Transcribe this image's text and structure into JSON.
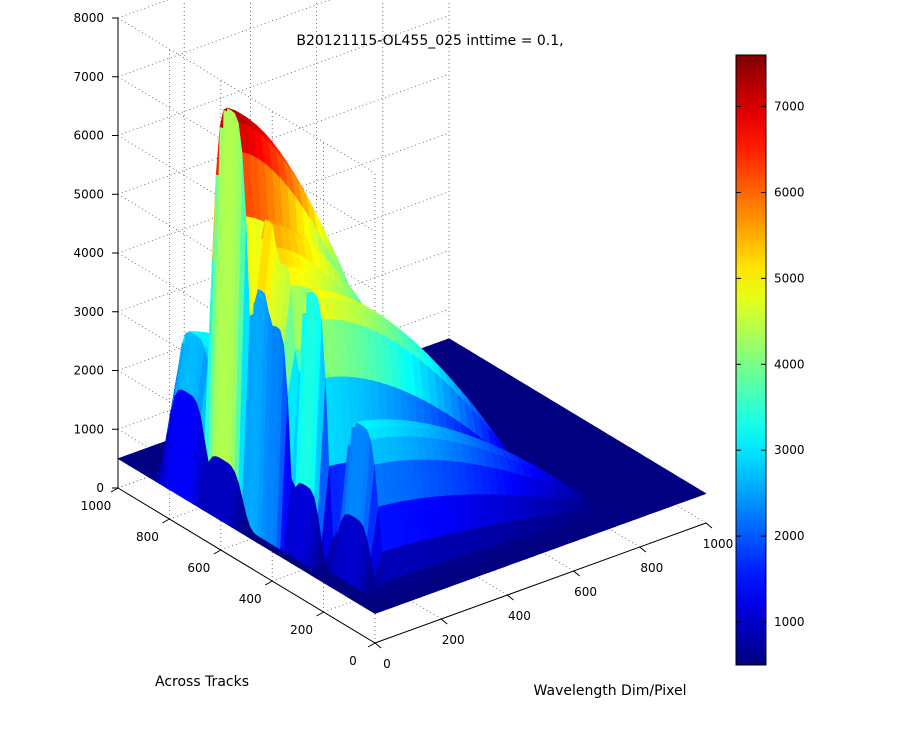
{
  "chart_data": {
    "type": "surface3d",
    "title": "B20121115-OL455_025 inttime = 0.1,",
    "xlabel": "Wavelength Dim/Pixel",
    "ylabel": "Across Tracks",
    "zlabel": "",
    "xlim": [
      0,
      1000
    ],
    "ylim": [
      0,
      1000
    ],
    "zlim": [
      0,
      8000
    ],
    "x_ticks": [
      "0",
      "200",
      "400",
      "600",
      "800",
      "1000"
    ],
    "y_ticks": [
      "0",
      "200",
      "400",
      "600",
      "800",
      "1000"
    ],
    "z_ticks": [
      "0",
      "1000",
      "2000",
      "3000",
      "4000",
      "5000",
      "6000",
      "7000",
      "8000"
    ],
    "colorbar": {
      "colormap": "jet",
      "range": [
        500,
        7600
      ],
      "ticks": [
        "1000",
        "2000",
        "3000",
        "4000",
        "5000",
        "6000",
        "7000"
      ]
    },
    "grid": true,
    "peak_value": 7400,
    "baseline_value": 500,
    "ridges": [
      {
        "x_start": 10,
        "x_end": 500,
        "y_center": 760,
        "y_width": 90,
        "peak": 3200
      },
      {
        "x_start": 20,
        "x_end": 560,
        "y_center": 620,
        "y_width": 90,
        "peak": 7400
      },
      {
        "x_start": 30,
        "x_end": 600,
        "y_center": 500,
        "y_width": 60,
        "peak": 5800
      },
      {
        "x_start": 30,
        "x_end": 640,
        "y_center": 440,
        "y_width": 60,
        "peak": 5200
      },
      {
        "x_start": 40,
        "x_end": 700,
        "y_center": 330,
        "y_width": 70,
        "peak": 5000
      },
      {
        "x_start": 60,
        "x_end": 760,
        "y_center": 170,
        "y_width": 80,
        "peak": 3100
      }
    ]
  }
}
